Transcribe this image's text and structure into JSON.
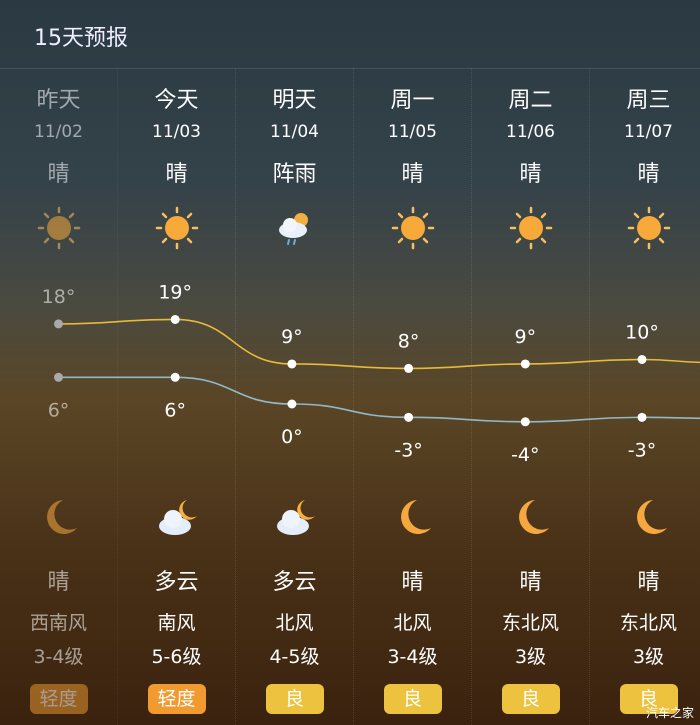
{
  "header": {
    "title": "15天预报"
  },
  "days": [
    {
      "day": "昨天",
      "date": "11/02",
      "day_cond": "晴",
      "day_icon": "sun-icon",
      "high": 18,
      "low": 6,
      "night_icon": "moon-icon",
      "night_cond": "晴",
      "wind_dir": "西南风",
      "wind_level": "3-4级",
      "aqi": "轻度",
      "aqi_color": "#e8962e",
      "past": true
    },
    {
      "day": "今天",
      "date": "11/03",
      "day_cond": "晴",
      "day_icon": "sun-icon",
      "high": 19,
      "low": 6,
      "night_icon": "cloud-moon-icon",
      "night_cond": "多云",
      "wind_dir": "南风",
      "wind_level": "5-6级",
      "aqi": "轻度",
      "aqi_color": "#f09a30"
    },
    {
      "day": "明天",
      "date": "11/04",
      "day_cond": "阵雨",
      "day_icon": "shower-icon",
      "high": 9,
      "low": 0,
      "night_icon": "cloud-moon-icon",
      "night_cond": "多云",
      "wind_dir": "北风",
      "wind_level": "4-5级",
      "aqi": "良",
      "aqi_color": "#ecc23e"
    },
    {
      "day": "周一",
      "date": "11/05",
      "day_cond": "晴",
      "day_icon": "sun-icon",
      "high": 8,
      "low": -3,
      "night_icon": "moon-icon",
      "night_cond": "晴",
      "wind_dir": "北风",
      "wind_level": "3-4级",
      "aqi": "良",
      "aqi_color": "#ecc23e"
    },
    {
      "day": "周二",
      "date": "11/06",
      "day_cond": "晴",
      "day_icon": "sun-icon",
      "high": 9,
      "low": -4,
      "night_icon": "moon-icon",
      "night_cond": "晴",
      "wind_dir": "东北风",
      "wind_level": "3级",
      "aqi": "良",
      "aqi_color": "#ecc23e"
    },
    {
      "day": "周三",
      "date": "11/07",
      "day_cond": "晴",
      "day_icon": "sun-icon",
      "high": 10,
      "low": -3,
      "night_icon": "moon-icon",
      "night_cond": "晴",
      "wind_dir": "东北风",
      "wind_level": "3级",
      "aqi": "良",
      "aqi_color": "#ecc23e"
    }
  ],
  "colors": {
    "high_line": "#e8b93a",
    "low_line": "#8fb8c8"
  },
  "watermark": "汽车之家"
}
